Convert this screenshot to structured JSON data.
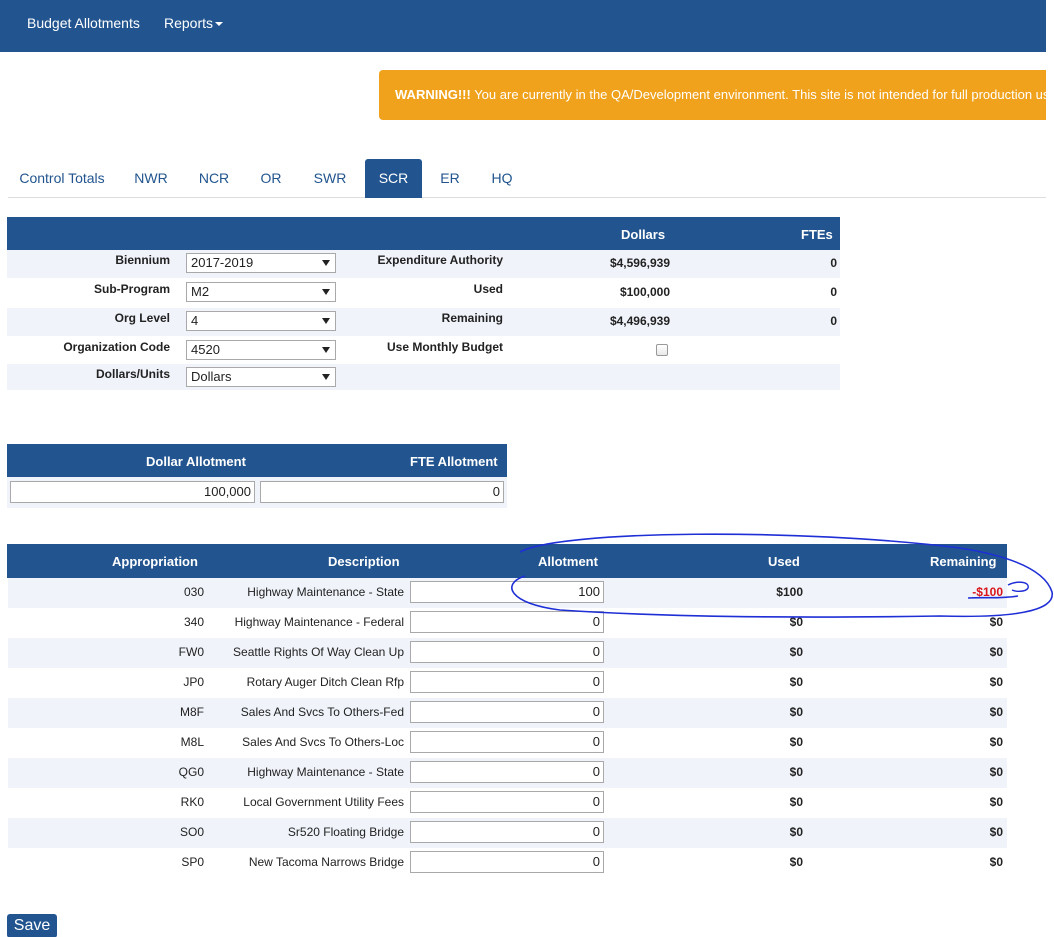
{
  "nav": {
    "items": [
      {
        "label": "Budget Allotments"
      },
      {
        "label": "Reports"
      }
    ]
  },
  "warning": {
    "strong": "WARNING!!!",
    "text": " You are currently in the QA/Development environment. This site is not intended for full production use."
  },
  "tabs": [
    {
      "label": "Control Totals"
    },
    {
      "label": "NWR"
    },
    {
      "label": "NCR"
    },
    {
      "label": "OR"
    },
    {
      "label": "SWR"
    },
    {
      "label": "SCR",
      "active": true
    },
    {
      "label": "ER"
    },
    {
      "label": "HQ"
    }
  ],
  "summary": {
    "headers": {
      "dollars": "Dollars",
      "ftes": "FTEs"
    },
    "fields": [
      {
        "label": "Biennium",
        "value": "2017-2019"
      },
      {
        "label": "Sub-Program",
        "value": "M2"
      },
      {
        "label": "Org Level",
        "value": "4"
      },
      {
        "label": "Organization Code",
        "value": "4520"
      },
      {
        "label": "Dollars/Units",
        "value": "Dollars"
      }
    ],
    "metrics": [
      {
        "label": "Expenditure Authority",
        "dollars": "$4,596,939",
        "ftes": "0"
      },
      {
        "label": "Used",
        "dollars": "$100,000",
        "ftes": "0"
      },
      {
        "label": "Remaining",
        "dollars": "$4,496,939",
        "ftes": "0"
      }
    ],
    "monthly_budget_label": "Use Monthly Budget"
  },
  "allotment": {
    "headers": {
      "dollar": "Dollar Allotment",
      "fte": "FTE Allotment"
    },
    "dollar_value": "100,000",
    "fte_value": "0"
  },
  "appropriations": {
    "headers": {
      "appropriation": "Appropriation",
      "description": "Description",
      "allotment": "Allotment",
      "used": "Used",
      "remaining": "Remaining"
    },
    "rows": [
      {
        "code": "030",
        "description": "Highway Maintenance - State",
        "allotment": "100",
        "used": "$100",
        "remaining": "-$100"
      },
      {
        "code": "340",
        "description": "Highway Maintenance - Federal",
        "allotment": "0",
        "used": "$0",
        "remaining": "$0"
      },
      {
        "code": "FW0",
        "description": "Seattle Rights Of Way Clean Up",
        "allotment": "0",
        "used": "$0",
        "remaining": "$0"
      },
      {
        "code": "JP0",
        "description": "Rotary Auger Ditch Clean Rfp",
        "allotment": "0",
        "used": "$0",
        "remaining": "$0"
      },
      {
        "code": "M8F",
        "description": "Sales And Svcs To Others-Fed",
        "allotment": "0",
        "used": "$0",
        "remaining": "$0"
      },
      {
        "code": "M8L",
        "description": "Sales And Svcs To Others-Loc",
        "allotment": "0",
        "used": "$0",
        "remaining": "$0"
      },
      {
        "code": "QG0",
        "description": "Highway Maintenance - State",
        "allotment": "0",
        "used": "$0",
        "remaining": "$0"
      },
      {
        "code": "RK0",
        "description": "Local Government Utility Fees",
        "allotment": "0",
        "used": "$0",
        "remaining": "$0"
      },
      {
        "code": "SO0",
        "description": "Sr520 Floating Bridge",
        "allotment": "0",
        "used": "$0",
        "remaining": "$0"
      },
      {
        "code": "SP0",
        "description": "New Tacoma Narrows Bridge",
        "allotment": "0",
        "used": "$0",
        "remaining": "$0"
      }
    ]
  },
  "save_label": "Save",
  "colors": {
    "primary": "#22558f",
    "warning": "#f0a21d",
    "negative": "#d9141a",
    "annotation": "#1f2fd6"
  }
}
